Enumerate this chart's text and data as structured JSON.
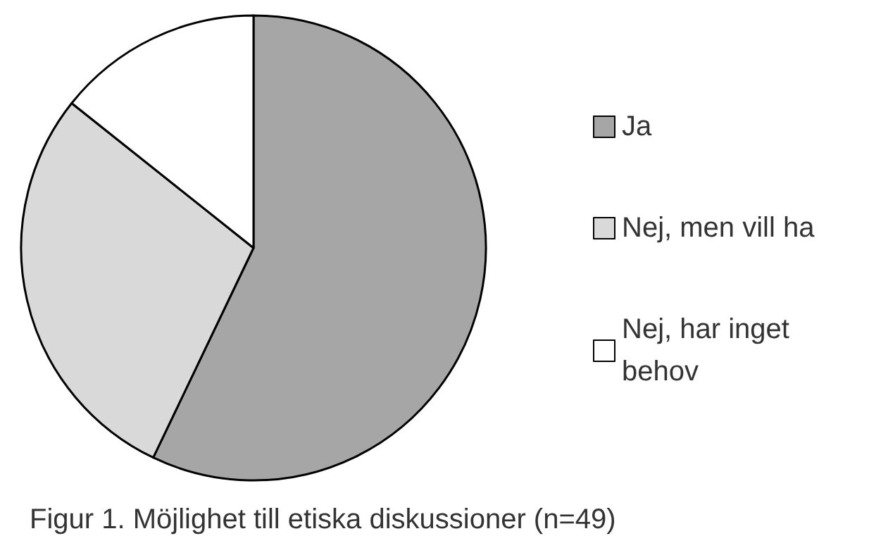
{
  "chart_data": {
    "type": "pie",
    "title": "Figur 1. Möjlighet till etiska diskussioner (n=49)",
    "categories": [
      "Ja",
      "Nej, men vill ha",
      "Nej, har inget behov"
    ],
    "values": [
      57.1,
      28.6,
      14.3
    ],
    "colors": [
      "#a6a6a6",
      "#d9d9d9",
      "#ffffff"
    ],
    "legend": "right"
  }
}
